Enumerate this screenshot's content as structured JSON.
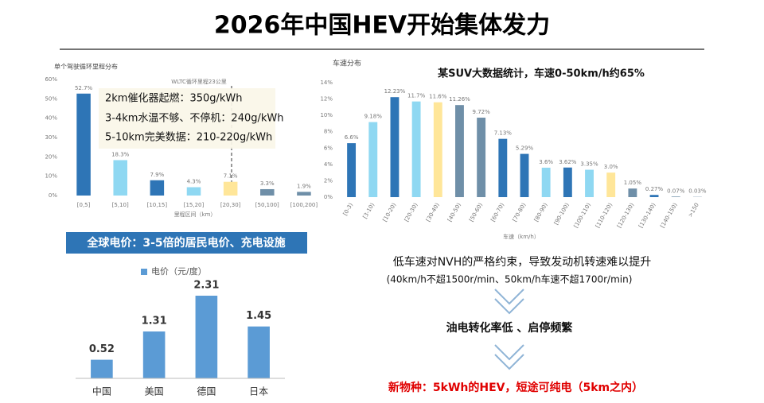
{
  "header": {
    "title": "2026年中国HEV开始集体发力"
  },
  "chart_data": [
    {
      "type": "bar",
      "title": "单个驾驶循环里程分布",
      "x_label": "里程区间（km）",
      "categories": [
        "[0,5]",
        "[5,10]",
        "[10,15]",
        "[15,20]",
        "[20,30]",
        "[50,100]",
        "[100,200]"
      ],
      "values": [
        52.7,
        18.3,
        7.9,
        4.3,
        7.1,
        3.3,
        1.9
      ],
      "value_labels": [
        "52.7%",
        "18.3%",
        "7.9%",
        "4.3%",
        "7.1%",
        "3.3%",
        "1.9%"
      ],
      "colors": [
        "#2e75b6",
        "#8fd8f2",
        "#2e75b6",
        "#8fd8f2",
        "#ffe699",
        "#6f8fa8",
        "#6f8fa8"
      ],
      "ylim": [
        0,
        60
      ],
      "yticks": [
        {
          "value": 0,
          "label": "0%"
        },
        {
          "value": 10,
          "label": "10%"
        },
        {
          "value": 20,
          "label": "20%"
        },
        {
          "value": 30,
          "label": "30%"
        },
        {
          "value": 40,
          "label": "40%"
        },
        {
          "value": 50,
          "label": "50%"
        },
        {
          "value": 60,
          "label": "60%"
        }
      ],
      "grid": false,
      "annotations": [
        "WLTC循环里程23公里",
        "2km催化器起燃：350g/kWh",
        "3-4km水温不够、不停机：240g/kWh",
        "5-10km完美数据：210-220g/kWh"
      ]
    },
    {
      "type": "bar",
      "title": "车速分布",
      "x_label": "车速（km/h）",
      "annotation": "某SUV大数据统计，车速0-50km/h约65%",
      "categories": [
        "[0-3)",
        "[3-10)",
        "[10-20)",
        "[20-30)",
        "[30-40)",
        "[40-50)",
        "[50-60)",
        "[60-70)",
        "[70-80)",
        "[80-90)",
        "[90-100)",
        "[100-110)",
        "[110-120)",
        "[120-130)",
        "[130-140)",
        "[140-150)",
        ">150"
      ],
      "values": [
        6.6,
        9.18,
        12.23,
        11.7,
        11.6,
        11.26,
        9.72,
        7.13,
        5.29,
        3.6,
        3.62,
        3.35,
        3.0,
        1.05,
        0.27,
        0.07,
        0.03
      ],
      "value_labels": [
        "6.6%",
        "9.18%",
        "12.23%",
        "11.7%",
        "11.6%",
        "11.26%",
        "9.72%",
        "7.13%",
        "5.29%",
        "3.6%",
        "3.62%",
        "3.35%",
        "3.0%",
        "1.05%",
        "0.27%",
        "0.07%",
        "0.03%"
      ],
      "colors": [
        "#2e75b6",
        "#8fd8f2",
        "#2e75b6",
        "#8fd8f2",
        "#ffe699",
        "#6f8fa8",
        "#6f8fa8",
        "#2e75b6",
        "#2e75b6",
        "#8fd8f2",
        "#2e75b6",
        "#8fd8f2",
        "#ffe699",
        "#6f8fa8",
        "#2e75b6",
        "#6f8fa8",
        "#6f8fa8"
      ],
      "ylim": [
        0,
        14
      ],
      "yticks": [
        {
          "value": 0,
          "label": "0%"
        },
        {
          "value": 2,
          "label": "2%"
        },
        {
          "value": 4,
          "label": "4%"
        },
        {
          "value": 6,
          "label": "6%"
        },
        {
          "value": 8,
          "label": "8%"
        },
        {
          "value": 10,
          "label": "10%"
        },
        {
          "value": 12,
          "label": "12%"
        },
        {
          "value": 14,
          "label": "14%"
        }
      ],
      "grid": false
    },
    {
      "type": "bar",
      "title": "全球电价：3-5倍的居民电价、充电设施",
      "series": [
        {
          "name": "电价（元/度）",
          "color": "#5b9bd5",
          "values": [
            0.52,
            1.31,
            2.31,
            1.45
          ]
        }
      ],
      "categories": [
        "中国",
        "美国",
        "德国",
        "日本"
      ]
    }
  ],
  "notes": [
    "低车速对NVH的严格约束，导致发动机转速难以提升",
    "(40km/h不超1500r/min、50km/h车速不超1700r/min)",
    "油电转化率低 、启停频繁",
    "新物种：5kWh的HEV，短途可纯电（5km之内）"
  ]
}
